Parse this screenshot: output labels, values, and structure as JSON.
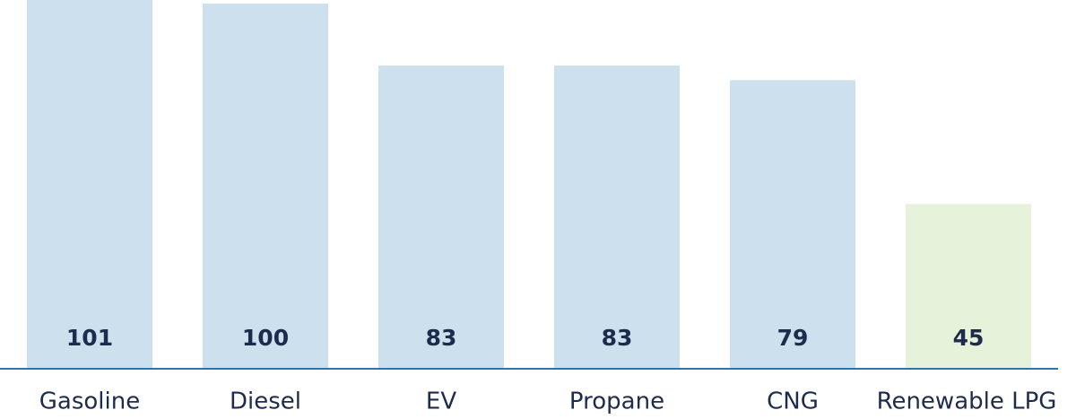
{
  "chart_data": {
    "type": "bar",
    "categories": [
      "Gasoline",
      "Diesel",
      "EV",
      "Propane",
      "CNG",
      "Renewable LPG"
    ],
    "values": [
      101,
      100,
      83,
      83,
      79,
      45
    ],
    "colors": [
      "#cde0ee",
      "#cde0ee",
      "#cde0ee",
      "#cde0ee",
      "#cde0ee",
      "#e6f2d9"
    ]
  }
}
